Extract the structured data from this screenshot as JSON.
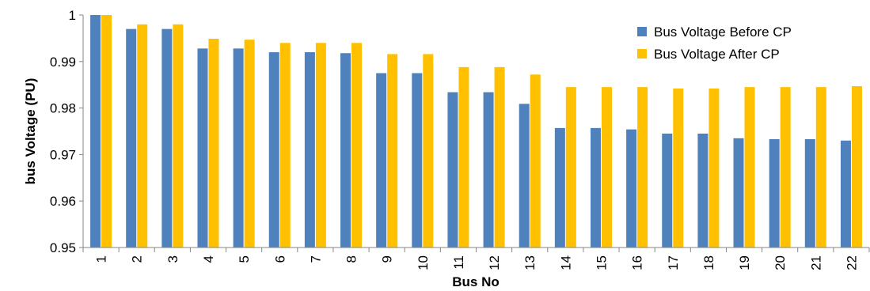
{
  "chart_data": {
    "type": "bar",
    "title": "",
    "xlabel": "Bus No",
    "ylabel": "bus Voltage (PU)",
    "ylim": [
      0.95,
      1.0
    ],
    "yticks": [
      "0.95",
      "0.96",
      "0.97",
      "0.98",
      "0.99",
      "1"
    ],
    "grid": false,
    "legend_position": "top-right",
    "categories": [
      "1",
      "2",
      "3",
      "4",
      "5",
      "6",
      "7",
      "8",
      "9",
      "10",
      "11",
      "12",
      "13",
      "14",
      "15",
      "16",
      "17",
      "18",
      "19",
      "20",
      "21",
      "22"
    ],
    "series": [
      {
        "name": "Bus Voltage Before CP",
        "color": "#4f81bd",
        "values": [
          1.0,
          0.997,
          0.997,
          0.9928,
          0.9928,
          0.992,
          0.992,
          0.9918,
          0.9875,
          0.9875,
          0.9834,
          0.9834,
          0.9809,
          0.9757,
          0.9757,
          0.9754,
          0.9745,
          0.9745,
          0.9735,
          0.9733,
          0.9733,
          0.973
        ]
      },
      {
        "name": "Bus Voltage After  CP",
        "color": "#ffc000",
        "values": [
          1.0,
          0.998,
          0.998,
          0.9949,
          0.9947,
          0.994,
          0.994,
          0.994,
          0.9916,
          0.9916,
          0.9888,
          0.9888,
          0.9872,
          0.9845,
          0.9845,
          0.9845,
          0.9842,
          0.9842,
          0.9845,
          0.9845,
          0.9845,
          0.9847
        ]
      }
    ]
  }
}
